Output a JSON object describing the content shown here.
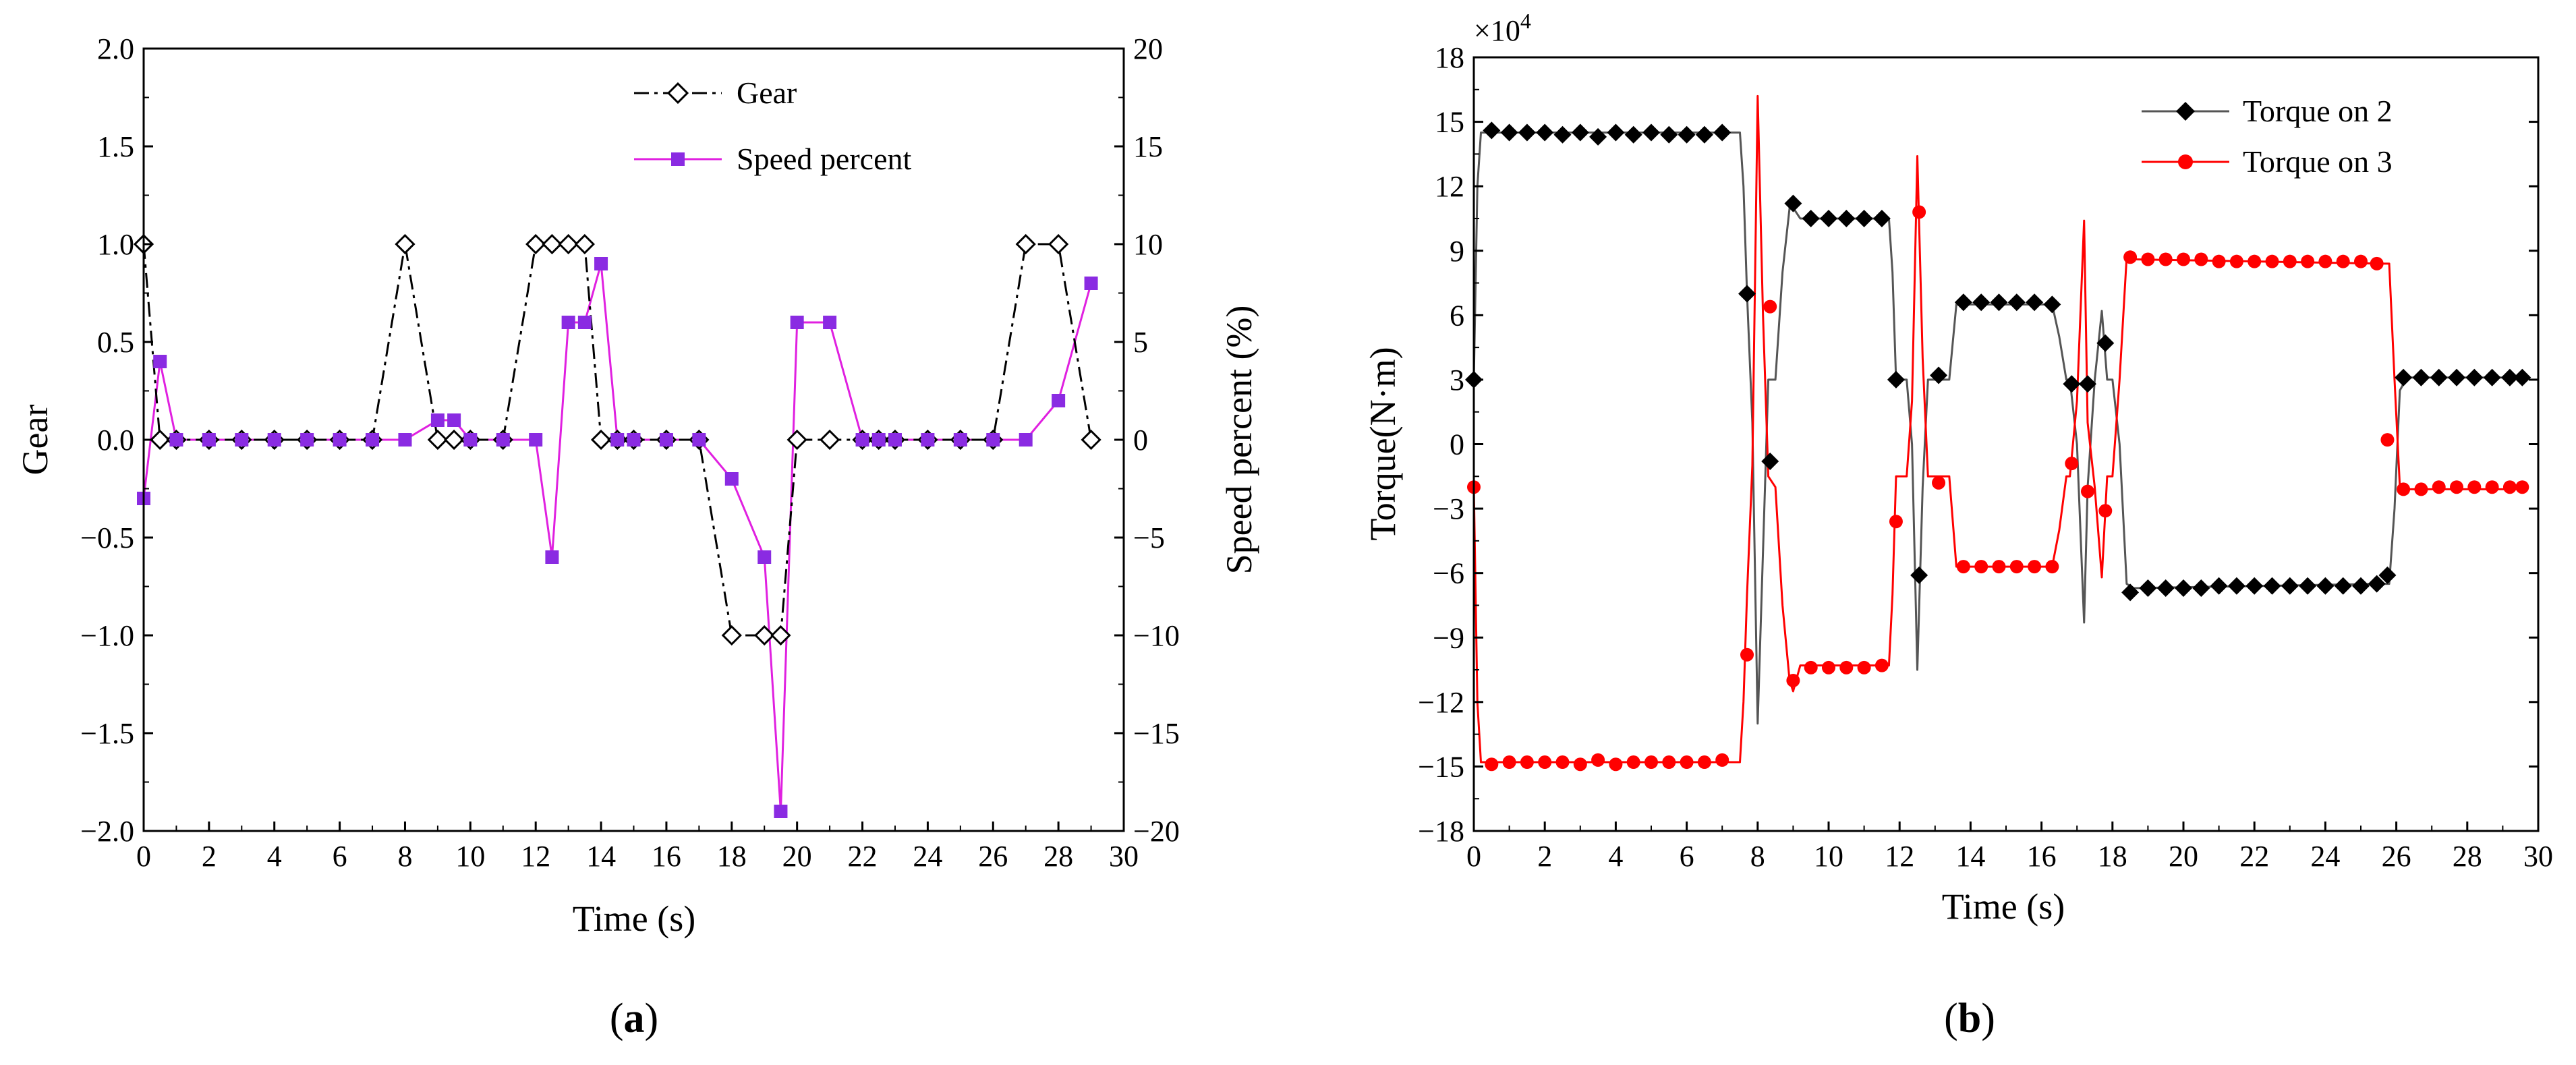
{
  "chart_data": [
    {
      "type": "line",
      "panel_label": "a",
      "xlabel": "Time (s)",
      "ylabel": "Gear",
      "y2label": "Speed percent (%)",
      "xlim": [
        0,
        30
      ],
      "ylim": [
        -2.0,
        2.0
      ],
      "y2lim": [
        -20,
        20
      ],
      "xticks": [
        0,
        2,
        4,
        6,
        8,
        10,
        12,
        14,
        16,
        18,
        20,
        22,
        24,
        26,
        28,
        30
      ],
      "yticks": [
        2.0,
        1.5,
        1.0,
        0.5,
        0.0,
        -0.5,
        -1.0,
        -1.5,
        -2.0
      ],
      "y2ticks": [
        20,
        15,
        10,
        5,
        0,
        -5,
        -10,
        -15,
        -20
      ],
      "xtick_labels": [
        "0",
        "2",
        "4",
        "6",
        "8",
        "10",
        "12",
        "14",
        "16",
        "18",
        "20",
        "22",
        "24",
        "26",
        "28",
        "30"
      ],
      "ytick_labels": [
        "2.0",
        "1.5",
        "1.0",
        "0.5",
        "0.0",
        "−0.5",
        "−1.0",
        "−1.5",
        "−2.0"
      ],
      "y2tick_labels": [
        "20",
        "15",
        "10",
        "5",
        "0",
        "−5",
        "−10",
        "−15",
        "−20"
      ],
      "grid": false,
      "legend_position": "top-right",
      "series": [
        {
          "name": "Gear",
          "axis": "left",
          "color": "#000000",
          "line_style": "dash-dot",
          "marker": "open-diamond",
          "x": [
            0,
            0.5,
            1,
            2,
            3,
            4,
            5,
            6,
            7,
            8,
            9,
            9.5,
            10,
            11,
            12,
            12.5,
            13,
            13.5,
            14,
            14.5,
            15,
            16,
            17,
            18,
            19,
            19.5,
            20,
            21,
            22,
            22.5,
            23,
            24,
            25,
            26,
            27,
            28,
            29
          ],
          "y": [
            1,
            0,
            0,
            0,
            0,
            0,
            0,
            0,
            0,
            1,
            0,
            0,
            0,
            0,
            1,
            1,
            1,
            1,
            0,
            0,
            0,
            0,
            0,
            -1,
            -1,
            -1,
            0,
            0,
            0,
            0,
            0,
            0,
            0,
            0,
            1,
            1,
            0
          ]
        },
        {
          "name": "Speed percent",
          "axis": "right",
          "color": "#e020e0",
          "marker_color": "#8a2be2",
          "line_style": "solid",
          "marker": "filled-square",
          "x": [
            0,
            0.5,
            1,
            2,
            3,
            4,
            5,
            6,
            7,
            8,
            9,
            9.5,
            10,
            11,
            12,
            12.5,
            13,
            13.5,
            14,
            14.5,
            15,
            16,
            17,
            18,
            19,
            19.5,
            20,
            21,
            22,
            22.5,
            23,
            24,
            25,
            26,
            27,
            28,
            29
          ],
          "y": [
            -3,
            4,
            0,
            0,
            0,
            0,
            0,
            0,
            0,
            0,
            1,
            1,
            0,
            0,
            0,
            -6,
            6,
            6,
            9,
            0,
            0,
            0,
            0,
            -2,
            -6,
            -19,
            6,
            6,
            0,
            0,
            0,
            0,
            0,
            0,
            0,
            2,
            8
          ]
        }
      ]
    },
    {
      "type": "line",
      "panel_label": "b",
      "xlabel": "Time (s)",
      "ylabel": "Torque(N·m)",
      "scale_label": "×10",
      "scale_exp": "4",
      "xlim": [
        0,
        30
      ],
      "ylim": [
        -18,
        18
      ],
      "xticks": [
        0,
        2,
        4,
        6,
        8,
        10,
        12,
        14,
        16,
        18,
        20,
        22,
        24,
        26,
        28,
        30
      ],
      "yticks": [
        18,
        15,
        12,
        9,
        6,
        3,
        0,
        -3,
        -6,
        -9,
        -12,
        -15,
        -18
      ],
      "xtick_labels": [
        "0",
        "2",
        "4",
        "6",
        "8",
        "10",
        "12",
        "14",
        "16",
        "18",
        "20",
        "22",
        "24",
        "26",
        "28",
        "30"
      ],
      "ytick_labels": [
        "18",
        "15",
        "12",
        "9",
        "6",
        "3",
        "0",
        "−3",
        "−6",
        "−9",
        "−12",
        "−15",
        "−18"
      ],
      "grid": false,
      "legend_position": "top-right",
      "series": [
        {
          "name": "Torque on 2",
          "color": "#000000",
          "line_color": "#555555",
          "marker": "filled-diamond",
          "curve_x": [
            0,
            0.1,
            0.2,
            0.3,
            7.5,
            7.6,
            7.7,
            7.85,
            8.0,
            8.15,
            8.3,
            8.5,
            8.7,
            8.9,
            9.0,
            9.2,
            9.5,
            11.7,
            11.8,
            11.9,
            12.0,
            12.2,
            12.35,
            12.5,
            12.65,
            12.8,
            13.0,
            13.4,
            13.6,
            13.8,
            16.3,
            16.5,
            16.7,
            16.8,
            17.0,
            17.2,
            17.3,
            17.5,
            17.7,
            17.85,
            18.0,
            18.2,
            18.4,
            18.6,
            25.6,
            25.8,
            25.95,
            26.1,
            26.3,
            29.6
          ],
          "curve_y": [
            3,
            12,
            14.5,
            14.5,
            14.5,
            12,
            7,
            1,
            -13,
            -5,
            3,
            3,
            8,
            11,
            11,
            10.5,
            10.5,
            10.5,
            8,
            3,
            3,
            3,
            0,
            -10.5,
            -2,
            3,
            3,
            3,
            6.5,
            6.5,
            6.5,
            5,
            3,
            3,
            0,
            -8.3,
            -2,
            3,
            6.2,
            3,
            3,
            0,
            -6.5,
            -6.7,
            -6.5,
            -6.5,
            -3,
            2.5,
            3.1,
            3.1
          ],
          "marker_x": [
            0,
            0.5,
            1,
            1.5,
            2,
            2.5,
            3,
            3.5,
            4,
            4.5,
            5,
            5.5,
            6,
            6.5,
            7,
            7.7,
            8.35,
            9.0,
            9.5,
            10.0,
            10.5,
            11.0,
            11.5,
            11.9,
            12.55,
            13.1,
            13.8,
            14.3,
            14.8,
            15.3,
            15.8,
            16.3,
            16.85,
            17.3,
            17.8,
            18.5,
            19.0,
            19.5,
            20.0,
            20.5,
            21.0,
            21.5,
            22.0,
            22.5,
            23.0,
            23.5,
            24.0,
            24.5,
            25.0,
            25.45,
            25.75,
            26.2,
            26.7,
            27.2,
            27.7,
            28.2,
            28.7,
            29.2,
            29.55
          ],
          "marker_y": [
            3,
            14.6,
            14.5,
            14.5,
            14.5,
            14.4,
            14.5,
            14.3,
            14.5,
            14.4,
            14.5,
            14.4,
            14.4,
            14.4,
            14.5,
            7,
            -0.8,
            11.2,
            10.5,
            10.5,
            10.5,
            10.5,
            10.5,
            3,
            -6.1,
            3.2,
            6.6,
            6.6,
            6.6,
            6.6,
            6.6,
            6.5,
            2.8,
            2.8,
            4.7,
            -6.9,
            -6.7,
            -6.7,
            -6.7,
            -6.7,
            -6.6,
            -6.6,
            -6.6,
            -6.6,
            -6.6,
            -6.6,
            -6.6,
            -6.6,
            -6.6,
            -6.5,
            -6.1,
            3.1,
            3.1,
            3.1,
            3.1,
            3.1,
            3.1,
            3.1,
            3.1
          ]
        },
        {
          "name": "Torque on 3",
          "color": "#ff0000",
          "line_color": "#ff0000",
          "marker": "filled-circle",
          "curve_x": [
            0,
            0.1,
            0.2,
            0.3,
            7.5,
            7.6,
            7.7,
            7.85,
            8.0,
            8.15,
            8.3,
            8.5,
            8.7,
            8.9,
            9.0,
            9.2,
            9.5,
            11.7,
            11.8,
            11.9,
            12.0,
            12.2,
            12.35,
            12.5,
            12.65,
            12.8,
            13.0,
            13.4,
            13.6,
            13.8,
            16.3,
            16.5,
            16.7,
            16.8,
            17.0,
            17.2,
            17.3,
            17.5,
            17.7,
            17.85,
            18.0,
            18.2,
            18.4,
            18.6,
            25.6,
            25.8,
            25.95,
            26.1,
            26.3,
            29.6
          ],
          "curve_y": [
            -2,
            -12,
            -14.8,
            -14.8,
            -14.8,
            -12,
            -7,
            -1,
            16.2,
            6,
            -1.5,
            -2,
            -7.5,
            -11,
            -11.5,
            -10.3,
            -10.3,
            -10.3,
            -7,
            -1.5,
            -1.5,
            -1.5,
            2,
            13.4,
            4,
            -1.5,
            -1.5,
            -1.5,
            -5.7,
            -5.7,
            -5.7,
            -4,
            -1.5,
            -1.5,
            2,
            10.4,
            1,
            -2,
            -6.2,
            -1.5,
            -1.5,
            3,
            8.7,
            8.6,
            8.4,
            8.4,
            3,
            -2,
            -2.1,
            -2.1
          ],
          "marker_x": [
            0,
            0.5,
            1,
            1.5,
            2,
            2.5,
            3,
            3.5,
            4,
            4.5,
            5,
            5.5,
            6,
            6.5,
            7,
            7.7,
            8.35,
            9.0,
            9.5,
            10.0,
            10.5,
            11.0,
            11.5,
            11.9,
            12.55,
            13.1,
            13.8,
            14.3,
            14.8,
            15.3,
            15.8,
            16.3,
            16.85,
            17.3,
            17.8,
            18.5,
            19.0,
            19.5,
            20.0,
            20.5,
            21.0,
            21.5,
            22.0,
            22.5,
            23.0,
            23.5,
            24.0,
            24.5,
            25.0,
            25.45,
            25.75,
            26.2,
            26.7,
            27.2,
            27.7,
            28.2,
            28.7,
            29.2,
            29.55
          ],
          "marker_y": [
            -2,
            -14.9,
            -14.8,
            -14.8,
            -14.8,
            -14.8,
            -14.9,
            -14.7,
            -14.9,
            -14.8,
            -14.8,
            -14.8,
            -14.8,
            -14.8,
            -14.7,
            -9.8,
            6.4,
            -11.0,
            -10.4,
            -10.4,
            -10.4,
            -10.4,
            -10.3,
            -3.6,
            10.8,
            -1.8,
            -5.7,
            -5.7,
            -5.7,
            -5.7,
            -5.7,
            -5.7,
            -0.9,
            -2.2,
            -3.1,
            8.7,
            8.6,
            8.6,
            8.6,
            8.6,
            8.5,
            8.5,
            8.5,
            8.5,
            8.5,
            8.5,
            8.5,
            8.5,
            8.5,
            8.4,
            0.2,
            -2.1,
            -2.1,
            -2.0,
            -2.0,
            -2.0,
            -2.0,
            -2.0,
            -2.0
          ]
        }
      ]
    }
  ]
}
